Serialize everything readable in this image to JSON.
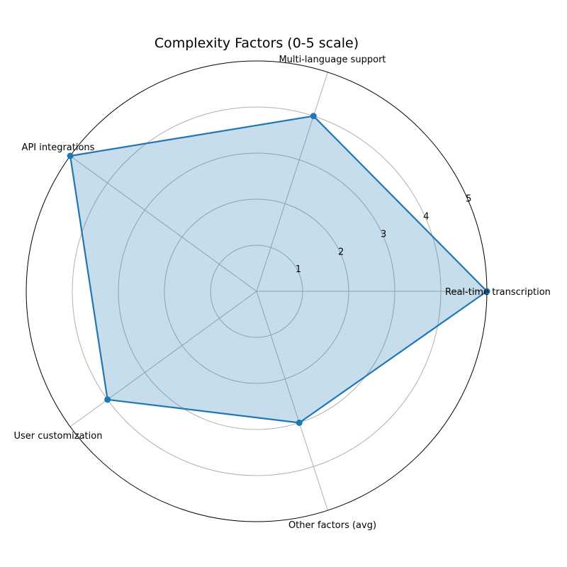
{
  "chart_data": {
    "type": "radar",
    "title": "Complexity Factors (0-5 scale)",
    "categories": [
      "Real-time transcription",
      "Multi-language support",
      "API integrations",
      "User customization",
      "Other factors (avg)"
    ],
    "values": [
      5,
      4,
      5,
      4,
      3
    ],
    "rlim": [
      0,
      5
    ],
    "rticks": [
      "1",
      "2",
      "3",
      "4",
      "5"
    ],
    "grid": true,
    "colors": {
      "line": "#1f77b4",
      "fill": "#1f77b4"
    }
  }
}
